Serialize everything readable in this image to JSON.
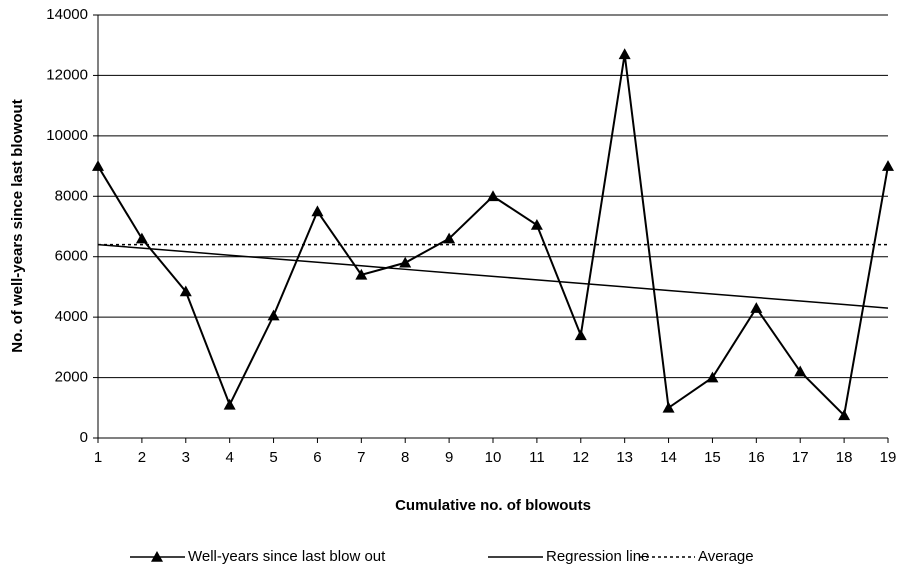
{
  "chart_data": {
    "type": "line",
    "x_label": "Cumulative no. of blowouts",
    "y_label": "No. of well-years since last blowout",
    "x": [
      1,
      2,
      3,
      4,
      5,
      6,
      7,
      8,
      9,
      10,
      11,
      12,
      13,
      14,
      15,
      16,
      17,
      18,
      19
    ],
    "series": [
      {
        "name": "Well-years since last blow out",
        "color": "#000000",
        "marker": "triangle",
        "dash": "solid",
        "values": [
          9000,
          6600,
          4850,
          1100,
          4050,
          7500,
          5400,
          5800,
          6600,
          8000,
          7050,
          3400,
          12700,
          1000,
          2000,
          4300,
          2200,
          750,
          9000
        ]
      },
      {
        "name": "Regression line",
        "color": "#000000",
        "marker": "none",
        "dash": "solid",
        "values": [
          6400,
          6283,
          6167,
          6050,
          5933,
          5817,
          5700,
          5583,
          5467,
          5350,
          5233,
          5117,
          5000,
          4883,
          4767,
          4650,
          4533,
          4417,
          4300
        ]
      },
      {
        "name": "Average",
        "color": "#000000",
        "marker": "none",
        "dash": "dotted",
        "values": [
          6400,
          6400,
          6400,
          6400,
          6400,
          6400,
          6400,
          6400,
          6400,
          6400,
          6400,
          6400,
          6400,
          6400,
          6400,
          6400,
          6400,
          6400,
          6400
        ]
      }
    ],
    "xlim": [
      1,
      19
    ],
    "xticks": [
      1,
      2,
      3,
      4,
      5,
      6,
      7,
      8,
      9,
      10,
      11,
      12,
      13,
      14,
      15,
      16,
      17,
      18,
      19
    ],
    "ylim": [
      0,
      14000
    ],
    "yticks": [
      0,
      2000,
      4000,
      6000,
      8000,
      10000,
      12000,
      14000
    ],
    "grid": true,
    "legend": "bottom"
  }
}
